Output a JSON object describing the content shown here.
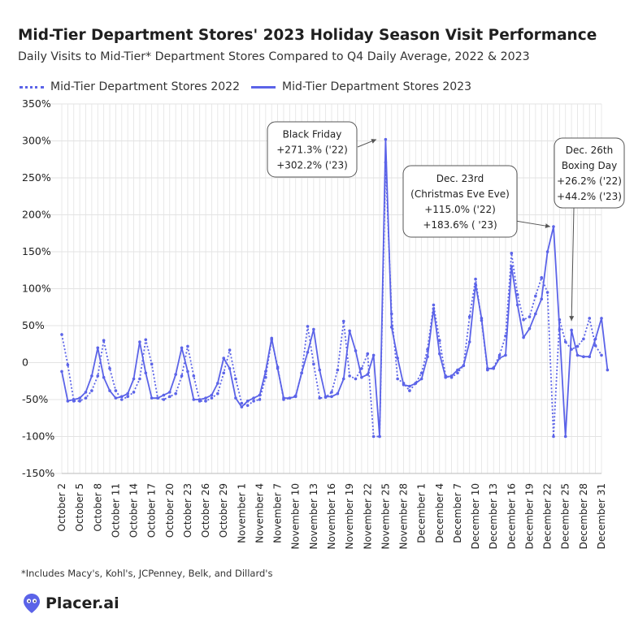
{
  "header": {
    "title": "Mid-Tier Department Stores' 2023 Holiday Season Visit Performance",
    "subtitle": "Daily Visits to Mid-Tier* Department Stores Compared to Q4 Daily Average, 2022 & 2023"
  },
  "legend": {
    "items": [
      {
        "label": "Mid-Tier Department Stores 2022",
        "style": "dotted"
      },
      {
        "label": "Mid-Tier Department Stores 2023",
        "style": "solid"
      }
    ]
  },
  "footnote": "*Includes Macy's, Kohl's, JCPenney, Belk, and Dillard's",
  "brand": {
    "name": "Placer.ai",
    "icon": "placer-pin-icon"
  },
  "colors": {
    "line": "#5b63e8",
    "grid": "#e3e3e3",
    "text": "#222222"
  },
  "chart_data": {
    "type": "line",
    "title": "Mid-Tier Department Stores' 2023 Holiday Season Visit Performance",
    "xlabel": "",
    "ylabel": "",
    "ylim": [
      -150,
      350
    ],
    "yticks": [
      350,
      300,
      250,
      200,
      150,
      100,
      50,
      0,
      -50,
      -100,
      -150
    ],
    "ytick_labels": [
      "350%",
      "300%",
      "250%",
      "200%",
      "150%",
      "100%",
      "50%",
      "0",
      "-50%",
      "-100%",
      "-150%"
    ],
    "x_start_day": 2,
    "x_end_day": 92,
    "xtick_days": [
      2,
      5,
      8,
      11,
      14,
      17,
      20,
      23,
      26,
      29,
      32,
      35,
      38,
      41,
      44,
      47,
      50,
      53,
      56,
      59,
      62,
      65,
      68,
      71,
      74,
      77,
      80,
      83,
      86,
      89,
      92
    ],
    "xtick_labels": [
      "October 2",
      "October 5",
      "October 8",
      "October 11",
      "October 14",
      "October 17",
      "October 20",
      "October 23",
      "October 26",
      "October 29",
      "November 1",
      "November 4",
      "November 7",
      "November 10",
      "November 13",
      "November 16",
      "November 19",
      "November 22",
      "November 25",
      "November 28",
      "December 1",
      "December 4",
      "December 7",
      "December 10",
      "December 13",
      "December 16",
      "December 19",
      "December 22",
      "December 25",
      "December 28",
      "December 31"
    ],
    "series": [
      {
        "name": "Mid-Tier Department Stores 2022",
        "style": "dotted",
        "values": [
          38,
          -3,
          -52,
          -52,
          -48,
          -38,
          -18,
          30,
          -8,
          -38,
          -50,
          -46,
          -40,
          -22,
          31,
          -2,
          -48,
          -50,
          -46,
          -42,
          -18,
          22,
          -18,
          -52,
          -52,
          -48,
          -42,
          -14,
          17,
          -22,
          -55,
          -58,
          -52,
          -50,
          -20,
          31,
          -6,
          -50,
          -48,
          -45,
          -14,
          49,
          -2,
          -48,
          -47,
          -40,
          -10,
          56,
          -18,
          -22,
          -8,
          12,
          -100,
          -100,
          271,
          66,
          -22,
          -28,
          -38,
          -28,
          -14,
          18,
          78,
          30,
          -18,
          -20,
          -14,
          -4,
          62,
          113,
          57,
          -10,
          -7,
          10,
          36,
          148,
          92,
          58,
          62,
          90,
          115,
          95,
          -100,
          58,
          28,
          18,
          22,
          32,
          60,
          23,
          10
        ]
      },
      {
        "name": "Mid-Tier Department Stores 2023",
        "style": "solid",
        "values": [
          -12,
          -52,
          -50,
          -48,
          -40,
          -18,
          20,
          -20,
          -38,
          -48,
          -46,
          -42,
          -22,
          28,
          -14,
          -48,
          -48,
          -44,
          -40,
          -16,
          20,
          -12,
          -50,
          -50,
          -48,
          -44,
          -28,
          6,
          -8,
          -48,
          -60,
          -52,
          -48,
          -44,
          -12,
          33,
          -8,
          -48,
          -48,
          -46,
          -14,
          14,
          45,
          -10,
          -46,
          -46,
          -42,
          -22,
          43,
          16,
          -20,
          -16,
          10,
          -100,
          302,
          48,
          6,
          -30,
          -32,
          -28,
          -22,
          8,
          73,
          12,
          -20,
          -18,
          -10,
          -4,
          28,
          106,
          60,
          -8,
          -8,
          6,
          10,
          130,
          78,
          34,
          46,
          66,
          86,
          150,
          184,
          45,
          -100,
          44,
          10,
          8,
          8,
          32,
          60,
          -10
        ]
      }
    ],
    "annotations": [
      {
        "lines": [
          "Black Friday",
          "+271.3% ('22)",
          "+302.2% ('23)"
        ],
        "target_day": 55,
        "target_value": 302
      },
      {
        "lines": [
          "Dec. 23rd",
          "(Christmas Eve Eve)",
          "+115.0% ('22)",
          "+183.6% ( '23)"
        ],
        "target_day": 84,
        "target_value": 184
      },
      {
        "lines": [
          "Dec. 26th",
          "Boxing Day",
          "+26.2% ('22)",
          "+44.2% ('23)"
        ],
        "target_day": 87,
        "target_value": 52
      }
    ]
  }
}
